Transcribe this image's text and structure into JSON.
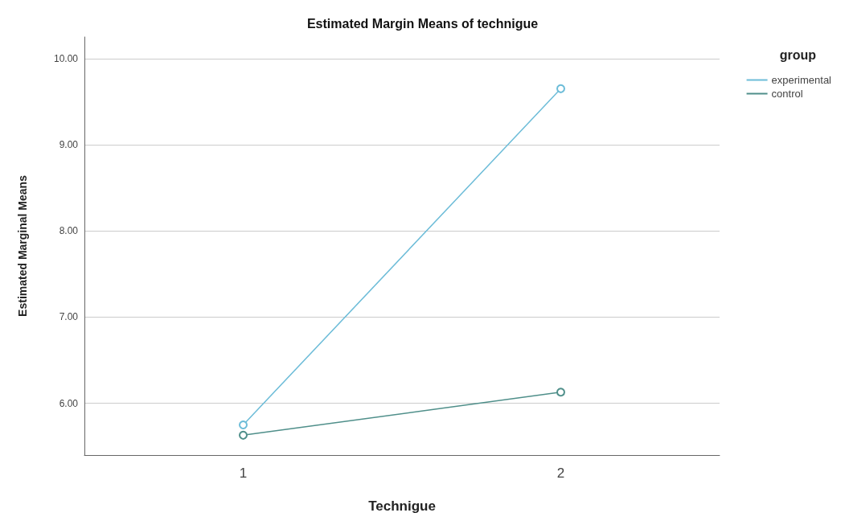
{
  "chart_data": {
    "type": "line",
    "title": "Estimated Margin Means of technigue",
    "xlabel": "Technigue",
    "ylabel": "Estimated Marginal Means",
    "legend_title": "group",
    "categories": [
      "1",
      "2"
    ],
    "series": [
      {
        "name": "experimental",
        "color": "#6cbcd8",
        "values": [
          5.75,
          9.65
        ]
      },
      {
        "name": "control",
        "color": "#4f8f8a",
        "values": [
          5.63,
          6.13
        ]
      }
    ],
    "ylim": [
      5.4,
      10.25
    ],
    "yticks": [
      {
        "value": 6,
        "label": "6.00"
      },
      {
        "value": 7,
        "label": "7.00"
      },
      {
        "value": 8,
        "label": "8.00"
      },
      {
        "value": 9,
        "label": "9.00"
      },
      {
        "value": 10,
        "label": "10.00"
      }
    ],
    "grid": "y",
    "legend": "top right",
    "marker": "circle",
    "line_style": "solid"
  }
}
